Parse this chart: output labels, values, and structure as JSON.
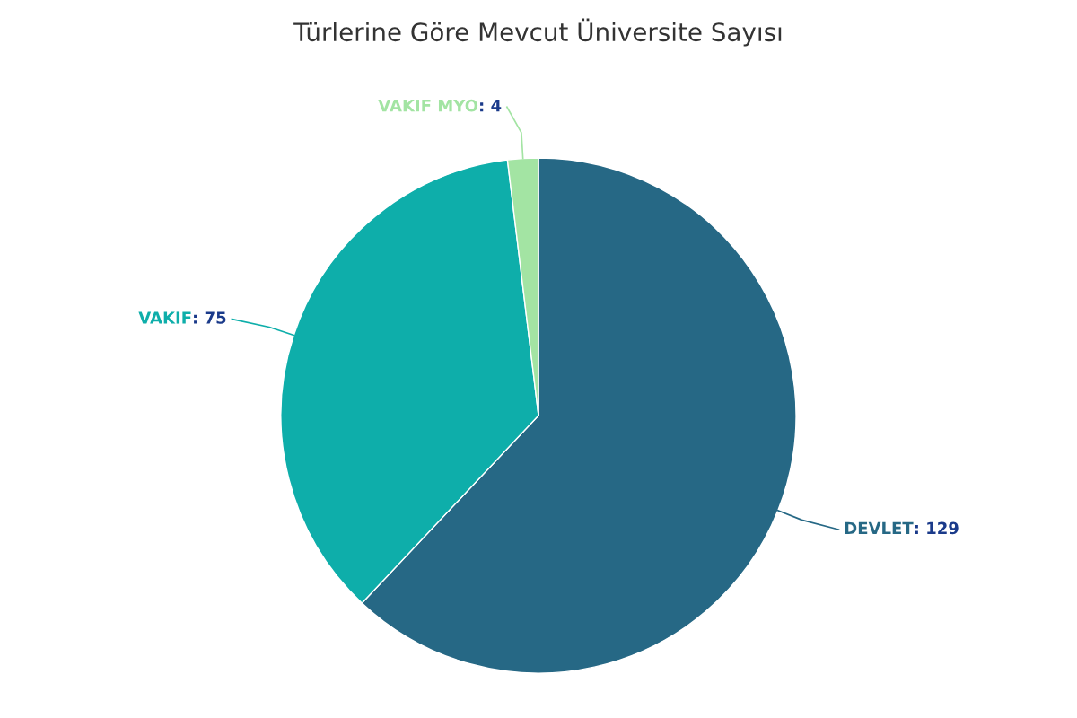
{
  "chart_data": {
    "type": "pie",
    "title": "Türlerine Göre Mevcut Üniversite Sayısı",
    "categories": [
      "DEVLET",
      "VAKIF",
      "VAKIF MYO"
    ],
    "values": [
      129,
      75,
      4
    ],
    "colors": [
      "#266885",
      "#0eaeaa",
      "#a3e4a3"
    ],
    "value_labels": [
      ": 129",
      ": 75",
      ": 4"
    ],
    "legend": false
  }
}
